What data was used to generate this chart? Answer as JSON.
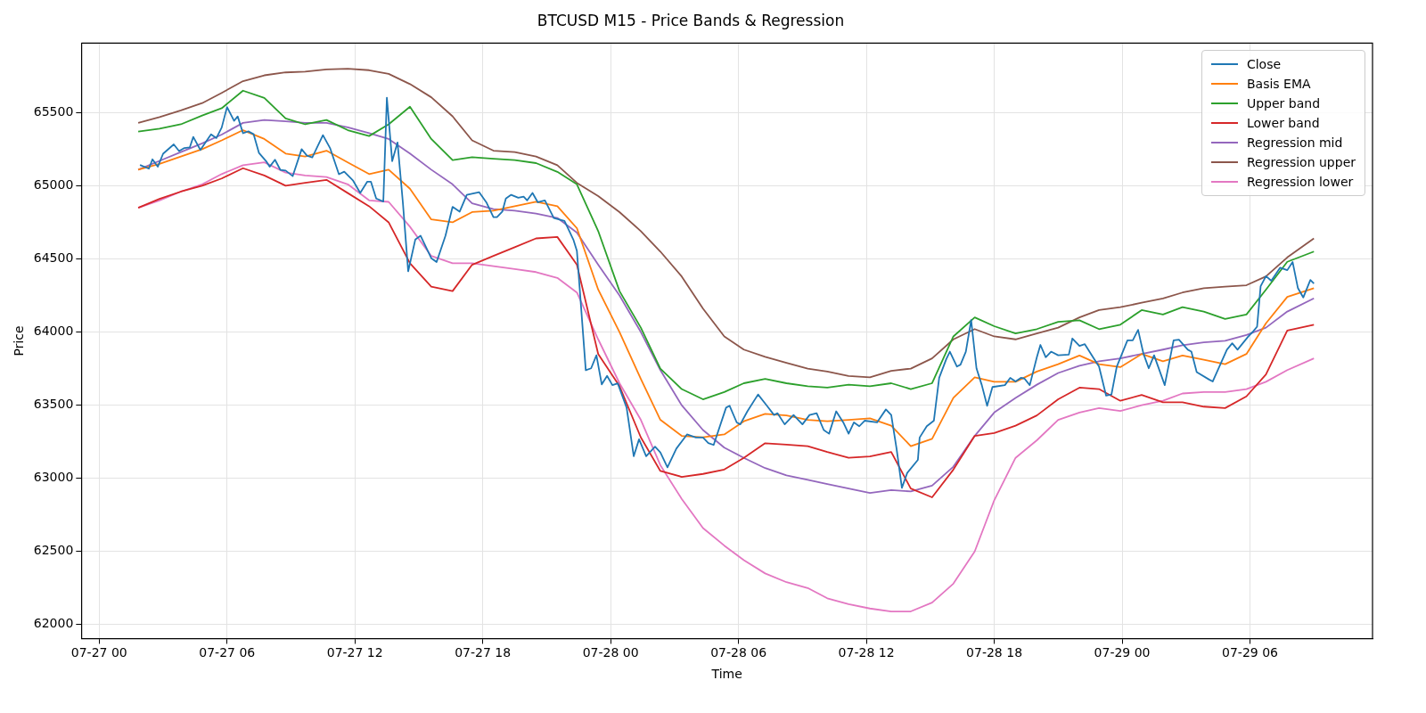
{
  "chart_data": {
    "type": "line",
    "title": "BTCUSD M15 - Price Bands & Regression",
    "xlabel": "Time",
    "ylabel": "Price",
    "xlim": [
      "--07-26T23:10",
      "--07-29T11:45"
    ],
    "ylim": [
      61905,
      65975
    ],
    "xticks": [
      {
        "value": "--07-27T00:00",
        "label": "07-27 00"
      },
      {
        "value": "--07-27T06:00",
        "label": "07-27 06"
      },
      {
        "value": "--07-27T12:00",
        "label": "07-27 12"
      },
      {
        "value": "--07-27T18:00",
        "label": "07-27 18"
      },
      {
        "value": "--07-28T00:00",
        "label": "07-28 00"
      },
      {
        "value": "--07-28T06:00",
        "label": "07-28 06"
      },
      {
        "value": "--07-28T12:00",
        "label": "07-28 12"
      },
      {
        "value": "--07-28T18:00",
        "label": "07-28 18"
      },
      {
        "value": "--07-29T00:00",
        "label": "07-29 00"
      },
      {
        "value": "--07-29T06:00",
        "label": "07-29 06"
      }
    ],
    "yticks": [
      62000,
      62500,
      63000,
      63500,
      64000,
      64500,
      65000,
      65500
    ],
    "grid": true,
    "legend": "top right",
    "marker": "none",
    "line_style": "solid",
    "x": [
      "--07-27T01:50",
      "--07-27T02:50",
      "--07-27T03:50",
      "--07-27T04:50",
      "--07-27T05:45",
      "--07-27T06:45",
      "--07-27T07:45",
      "--07-27T08:45",
      "--07-27T09:40",
      "--07-27T10:40",
      "--07-27T11:40",
      "--07-27T12:40",
      "--07-27T13:35",
      "--07-27T14:35",
      "--07-27T15:35",
      "--07-27T16:35",
      "--07-27T17:30",
      "--07-27T18:30",
      "--07-27T19:30",
      "--07-27T20:30",
      "--07-27T21:30",
      "--07-27T22:25",
      "--07-27T23:25",
      "--07-28T00:25",
      "--07-28T01:25",
      "--07-28T02:20",
      "--07-28T03:20",
      "--07-28T04:20",
      "--07-28T05:20",
      "--07-28T06:15",
      "--07-28T07:15",
      "--07-28T08:15",
      "--07-28T09:15",
      "--07-28T10:10",
      "--07-28T11:10",
      "--07-28T12:10",
      "--07-28T13:10",
      "--07-28T14:05",
      "--07-28T15:05",
      "--07-28T16:05",
      "--07-28T17:05",
      "--07-28T18:00",
      "--07-28T19:00",
      "--07-28T20:00",
      "--07-28T21:00",
      "--07-28T22:00",
      "--07-28T22:55",
      "--07-28T23:55",
      "--07-29T00:55",
      "--07-29T01:55",
      "--07-29T02:50",
      "--07-29T03:50",
      "--07-29T04:50",
      "--07-29T05:50",
      "--07-29T06:45",
      "--07-29T07:45",
      "--07-29T09:00"
    ],
    "series": [
      {
        "name": "Close",
        "color": "#1f77b4",
        "x": [
          "--07-27T01:55",
          "--07-27T02:20",
          "--07-27T02:30",
          "--07-27T02:45",
          "--07-27T03:00",
          "--07-27T03:30",
          "--07-27T03:45",
          "--07-27T04:00",
          "--07-27T04:15",
          "--07-27T04:25",
          "--07-27T04:45",
          "--07-27T05:05",
          "--07-27T05:15",
          "--07-27T05:30",
          "--07-27T05:45",
          "--07-27T06:00",
          "--07-27T06:20",
          "--07-27T06:30",
          "--07-27T06:45",
          "--07-27T07:00",
          "--07-27T07:15",
          "--07-27T07:30",
          "--07-27T07:50",
          "--07-27T08:00",
          "--07-27T08:15",
          "--07-27T08:30",
          "--07-27T08:45",
          "--07-27T09:05",
          "--07-27T09:30",
          "--07-27T09:45",
          "--07-27T10:00",
          "--07-27T10:30",
          "--07-27T10:50",
          "--07-27T11:15",
          "--07-27T11:30",
          "--07-27T11:55",
          "--07-27T12:15",
          "--07-27T12:35",
          "--07-27T12:45",
          "--07-27T13:00",
          "--07-27T13:20",
          "--07-27T13:30",
          "--07-27T13:45",
          "--07-27T14:00",
          "--07-27T14:15",
          "--07-27T14:30",
          "--07-27T14:50",
          "--07-27T15:05",
          "--07-27T15:35",
          "--07-27T15:50",
          "--07-27T16:15",
          "--07-27T16:35",
          "--07-27T16:55",
          "--07-27T17:15",
          "--07-27T17:50",
          "--07-27T18:10",
          "--07-27T18:30",
          "--07-27T18:40",
          "--07-27T18:55",
          "--07-27T19:05",
          "--07-27T19:20",
          "--07-27T19:40",
          "--07-27T19:55",
          "--07-27T20:05",
          "--07-27T20:20",
          "--07-27T20:35",
          "--07-27T20:55",
          "--07-27T21:20",
          "--07-27T21:50",
          "--07-27T22:15",
          "--07-27T22:25",
          "--07-27T22:50",
          "--07-27T23:05",
          "--07-27T23:20",
          "--07-27T23:35",
          "--07-27T23:50",
          "--07-28T00:05",
          "--07-28T00:20",
          "--07-28T00:45",
          "--07-28T01:05",
          "--07-28T01:20",
          "--07-28T01:40",
          "--07-28T02:05",
          "--07-28T02:20",
          "--07-28T02:40",
          "--07-28T03:05",
          "--07-28T03:35",
          "--07-28T04:00",
          "--07-28T04:20",
          "--07-28T04:35",
          "--07-28T04:50",
          "--07-28T05:25",
          "--07-28T05:35",
          "--07-28T05:55",
          "--07-28T06:05",
          "--07-28T06:25",
          "--07-28T06:55",
          "--07-28T07:20",
          "--07-28T07:40",
          "--07-28T07:50",
          "--07-28T08:10",
          "--07-28T08:35",
          "--07-28T09:00",
          "--07-28T09:20",
          "--07-28T09:40",
          "--07-28T10:00",
          "--07-28T10:15",
          "--07-28T10:35",
          "--07-28T10:55",
          "--07-28T11:10",
          "--07-28T11:25",
          "--07-28T11:40",
          "--07-28T11:55",
          "--07-28T12:30",
          "--07-28T12:55",
          "--07-28T13:10",
          "--07-28T13:25",
          "--07-28T13:40",
          "--07-28T13:55",
          "--07-28T14:25",
          "--07-28T14:30",
          "--07-28T14:50",
          "--07-28T15:10",
          "--07-28T15:25",
          "--07-28T15:45",
          "--07-28T15:55",
          "--07-28T16:15",
          "--07-28T16:25",
          "--07-28T16:40",
          "--07-28T16:55",
          "--07-28T17:10",
          "--07-28T17:25",
          "--07-28T17:40",
          "--07-28T17:55",
          "--07-28T18:30",
          "--07-28T18:45",
          "--07-28T19:00",
          "--07-28T19:15",
          "--07-28T19:25",
          "--07-28T19:40",
          "--07-28T20:00",
          "--07-28T20:10",
          "--07-28T20:25",
          "--07-28T20:40",
          "--07-28T21:00",
          "--07-28T21:30",
          "--07-28T21:40",
          "--07-28T22:00",
          "--07-28T22:15",
          "--07-28T22:40",
          "--07-28T22:55",
          "--07-28T23:15",
          "--07-28T23:30",
          "--07-28T23:45",
          "--07-29T00:15",
          "--07-29T00:30",
          "--07-29T00:45",
          "--07-29T01:00",
          "--07-29T01:15",
          "--07-29T01:30",
          "--07-29T02:00",
          "--07-29T02:25",
          "--07-29T02:40",
          "--07-29T03:05",
          "--07-29T03:15",
          "--07-29T03:30",
          "--07-29T04:05",
          "--07-29T04:15",
          "--07-29T04:55",
          "--07-29T05:10",
          "--07-29T05:25",
          "--07-29T05:55",
          "--07-29T06:10",
          "--07-29T06:20",
          "--07-29T06:30",
          "--07-29T06:45",
          "--07-29T07:00",
          "--07-29T07:25",
          "--07-29T07:45",
          "--07-29T08:00",
          "--07-29T08:15",
          "--07-29T08:30",
          "--07-29T08:50",
          "--07-29T09:00"
        ],
        "values": [
          65142,
          65117,
          65181,
          65130,
          65219,
          65283,
          65237,
          65258,
          65262,
          65334,
          65245,
          65316,
          65352,
          65326,
          65398,
          65538,
          65444,
          65474,
          65359,
          65372,
          65352,
          65224,
          65168,
          65130,
          65178,
          65109,
          65104,
          65066,
          65250,
          65206,
          65194,
          65346,
          65258,
          65079,
          65096,
          65035,
          64951,
          65028,
          65028,
          64913,
          64892,
          65602,
          65168,
          65296,
          64887,
          64415,
          64632,
          64658,
          64505,
          64479,
          64658,
          64856,
          64823,
          64938,
          64956,
          64887,
          64785,
          64785,
          64823,
          64913,
          64938,
          64918,
          64926,
          64900,
          64951,
          64887,
          64900,
          64780,
          64760,
          64632,
          64555,
          63739,
          63752,
          63841,
          63642,
          63700,
          63637,
          63649,
          63483,
          63151,
          63267,
          63151,
          63216,
          63177,
          63075,
          63203,
          63300,
          63279,
          63279,
          63241,
          63228,
          63483,
          63496,
          63382,
          63369,
          63458,
          63573,
          63496,
          63433,
          63445,
          63369,
          63433,
          63369,
          63433,
          63445,
          63330,
          63305,
          63458,
          63382,
          63305,
          63382,
          63356,
          63394,
          63382,
          63471,
          63433,
          63203,
          62935,
          63037,
          63126,
          63279,
          63356,
          63394,
          63687,
          63815,
          63866,
          63764,
          63777,
          63866,
          64081,
          63752,
          63637,
          63496,
          63624,
          63637,
          63687,
          63662,
          63687,
          63682,
          63637,
          63828,
          63912,
          63828,
          63866,
          63841,
          63846,
          63956,
          63905,
          63917,
          63820,
          63764,
          63565,
          63573,
          63764,
          63943,
          63943,
          64015,
          63853,
          63752,
          63841,
          63637,
          63943,
          63948,
          63879,
          63866,
          63726,
          63675,
          63662,
          63879,
          63923,
          63879,
          63969,
          64007,
          64037,
          64313,
          64382,
          64351,
          64440,
          64423,
          64479,
          64300,
          64236,
          64356,
          64331
        ]
      },
      {
        "name": "Basis EMA",
        "color": "#ff7f0e",
        "values": [
          65110,
          65150,
          65200,
          65250,
          65310,
          65380,
          65320,
          65220,
          65200,
          65240,
          65160,
          65080,
          65110,
          64980,
          64770,
          64750,
          64820,
          64830,
          64860,
          64890,
          64860,
          64710,
          64290,
          64000,
          63680,
          63400,
          63290,
          63280,
          63300,
          63390,
          63440,
          63430,
          63400,
          63390,
          63400,
          63410,
          63360,
          63220,
          63270,
          63550,
          63690,
          63660,
          63660,
          63730,
          63780,
          63840,
          63780,
          63760,
          63850,
          63800,
          63840,
          63810,
          63780,
          63850,
          64060,
          64240,
          64300
        ]
      },
      {
        "name": "Upper band",
        "color": "#2ca02c",
        "values": [
          65370,
          65390,
          65420,
          65480,
          65530,
          65650,
          65600,
          65460,
          65420,
          65450,
          65380,
          65340,
          65420,
          65540,
          65320,
          65175,
          65195,
          65185,
          65175,
          65155,
          65095,
          65010,
          64690,
          64280,
          64030,
          63750,
          63610,
          63540,
          63590,
          63650,
          63680,
          63650,
          63630,
          63620,
          63640,
          63630,
          63650,
          63610,
          63650,
          63970,
          64100,
          64040,
          63990,
          64020,
          64070,
          64080,
          64020,
          64050,
          64150,
          64120,
          64170,
          64140,
          64090,
          64120,
          64290,
          64480,
          64550
        ]
      },
      {
        "name": "Lower band",
        "color": "#d62728",
        "values": [
          64850,
          64910,
          64960,
          65000,
          65050,
          65120,
          65070,
          65000,
          65020,
          65040,
          64950,
          64860,
          64750,
          64470,
          64310,
          64280,
          64460,
          64520,
          64580,
          64640,
          64650,
          64460,
          63850,
          63630,
          63280,
          63050,
          63010,
          63030,
          63060,
          63140,
          63240,
          63230,
          63220,
          63180,
          63140,
          63150,
          63180,
          62930,
          62870,
          63060,
          63290,
          63310,
          63360,
          63430,
          63540,
          63620,
          63610,
          63530,
          63570,
          63520,
          63520,
          63490,
          63480,
          63560,
          63710,
          64010,
          64050
        ]
      },
      {
        "name": "Regression mid",
        "color": "#9467bd",
        "values": [
          65110,
          65170,
          65230,
          65290,
          65350,
          65430,
          65450,
          65440,
          65430,
          65430,
          65400,
          65360,
          65320,
          65220,
          65110,
          65010,
          64880,
          64840,
          64830,
          64810,
          64780,
          64680,
          64460,
          64250,
          64000,
          63740,
          63500,
          63330,
          63210,
          63140,
          63070,
          63020,
          62990,
          62960,
          62930,
          62900,
          62920,
          62910,
          62950,
          63080,
          63290,
          63450,
          63550,
          63640,
          63720,
          63770,
          63800,
          63820,
          63850,
          63880,
          63910,
          63930,
          63940,
          63980,
          64030,
          64140,
          64230
        ]
      },
      {
        "name": "Regression upper",
        "color": "#8c564b",
        "values": [
          65430,
          65470,
          65515,
          65565,
          65635,
          65715,
          65755,
          65775,
          65780,
          65795,
          65800,
          65790,
          65765,
          65695,
          65605,
          65475,
          65310,
          65240,
          65230,
          65200,
          65140,
          65020,
          64930,
          64820,
          64690,
          64550,
          64380,
          64160,
          63970,
          63880,
          63830,
          63790,
          63750,
          63730,
          63700,
          63690,
          63735,
          63750,
          63820,
          63950,
          64020,
          63970,
          63950,
          63990,
          64030,
          64100,
          64150,
          64170,
          64200,
          64230,
          64270,
          64300,
          64310,
          64320,
          64380,
          64510,
          64640
        ]
      },
      {
        "name": "Regression lower",
        "color": "#e377c2",
        "values": [
          64850,
          64900,
          64960,
          65010,
          65080,
          65140,
          65160,
          65090,
          65070,
          65060,
          65010,
          64900,
          64890,
          64720,
          64520,
          64470,
          64470,
          64450,
          64430,
          64410,
          64370,
          64270,
          63950,
          63650,
          63400,
          63090,
          62860,
          62660,
          62540,
          62440,
          62350,
          62290,
          62250,
          62180,
          62140,
          62110,
          62090,
          62090,
          62150,
          62280,
          62500,
          62850,
          63140,
          63260,
          63400,
          63450,
          63480,
          63460,
          63500,
          63530,
          63580,
          63590,
          63590,
          63610,
          63660,
          63740,
          63820
        ]
      }
    ]
  }
}
